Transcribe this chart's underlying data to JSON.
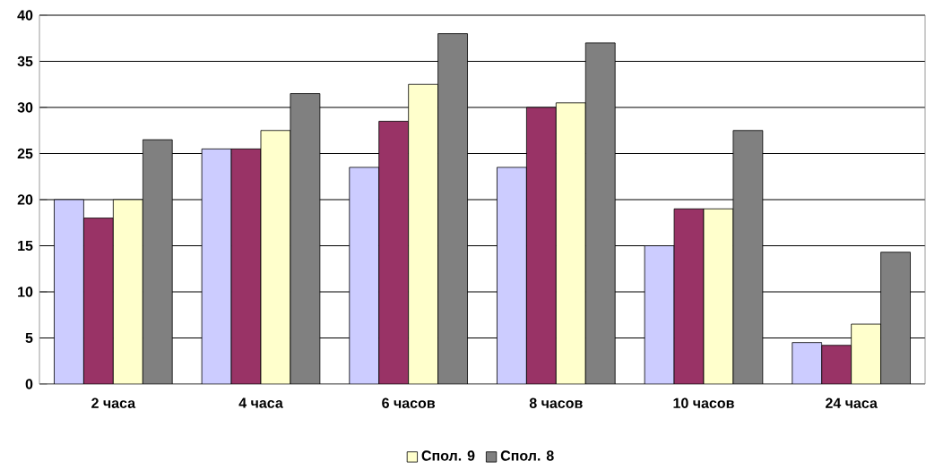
{
  "chart_data": {
    "type": "bar",
    "categories": [
      "2 часа",
      "4 часа",
      "6 часов",
      "8 часов",
      "10 часов",
      "24 часа"
    ],
    "series": [
      {
        "color": "#ccccff",
        "values": [
          20,
          25.5,
          23.5,
          23.5,
          15,
          4.5
        ]
      },
      {
        "color": "#993366",
        "values": [
          18,
          25.5,
          28.5,
          30,
          19,
          4.2
        ]
      },
      {
        "name": "Спол. 9",
        "color": "#ffffcc",
        "values": [
          20,
          27.5,
          32.5,
          30.5,
          19,
          6.5
        ]
      },
      {
        "name": "Спол. 8",
        "color": "#808080",
        "values": [
          26.5,
          31.5,
          38,
          37,
          27.5,
          14.3
        ]
      }
    ],
    "ylim": [
      0,
      40
    ],
    "yticks": [
      0,
      5,
      10,
      15,
      20,
      25,
      30,
      35,
      40
    ],
    "grid": "y",
    "legend": "bottom"
  }
}
